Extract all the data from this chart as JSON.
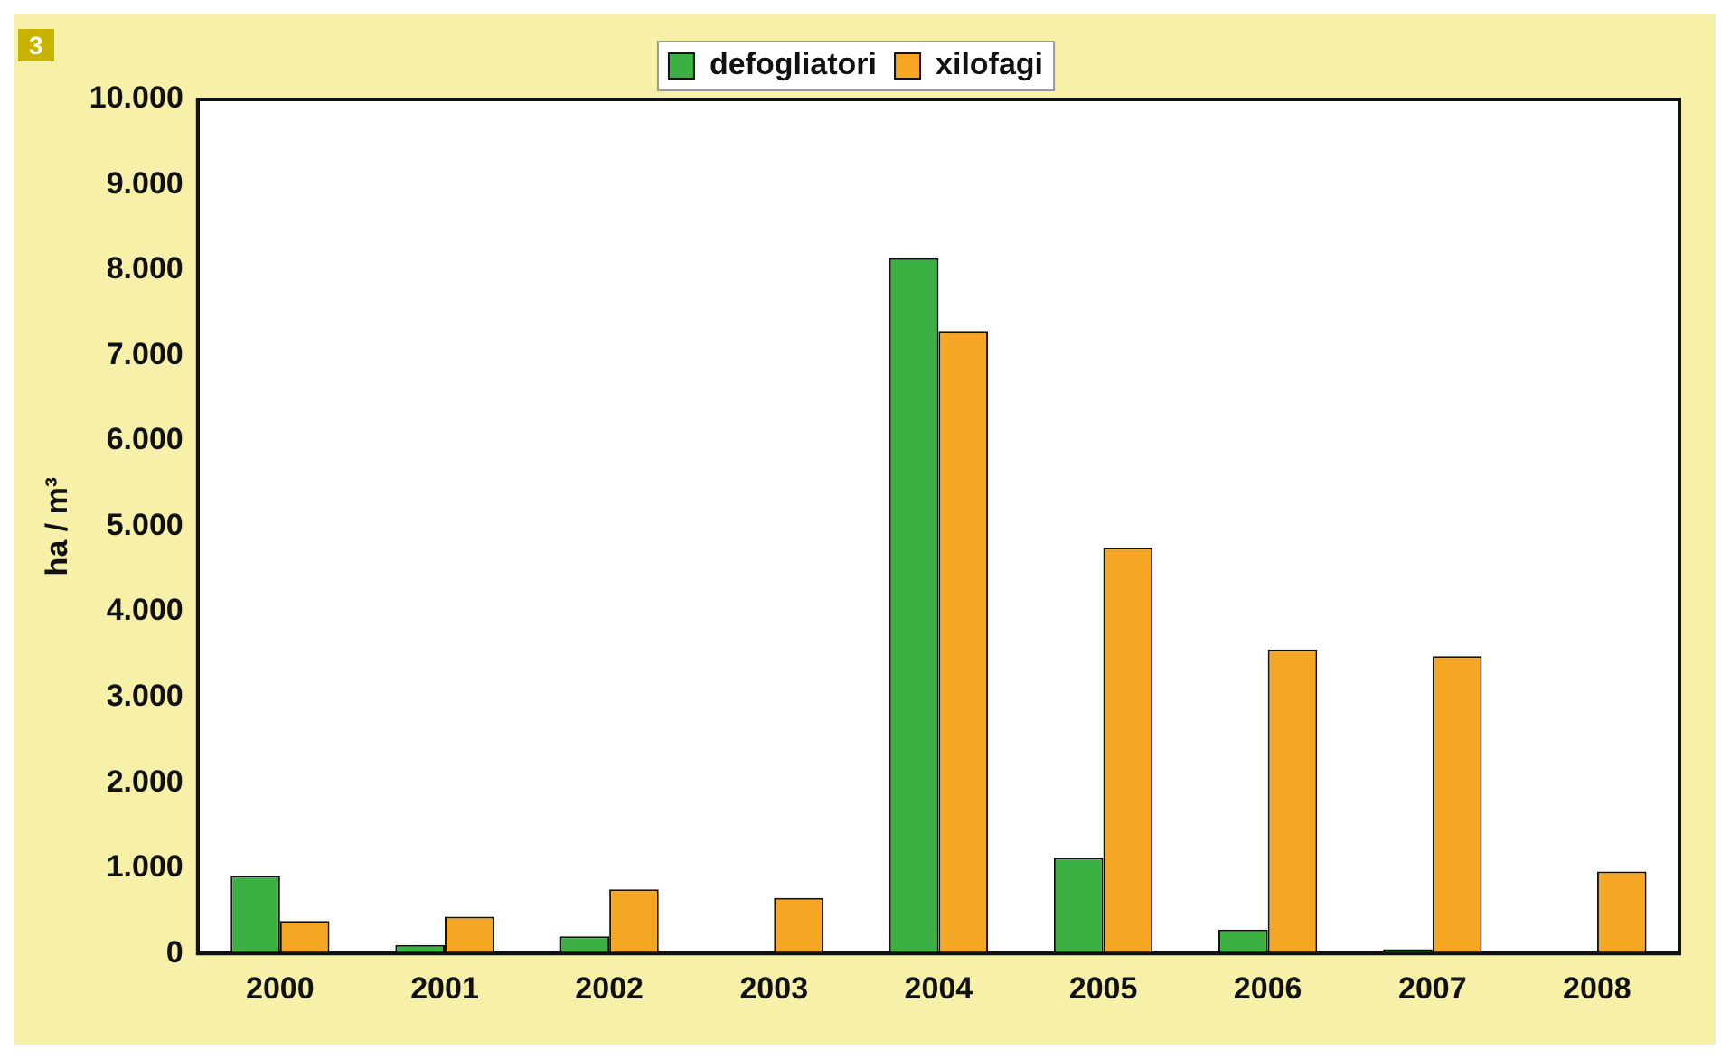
{
  "chart_data": {
    "type": "bar",
    "categories": [
      "2000",
      "2001",
      "2002",
      "2003",
      "2004",
      "2005",
      "2006",
      "2007",
      "2008"
    ],
    "series": [
      {
        "name": "defogliatori",
        "color": "#3cb043",
        "values": [
          910,
          100,
          200,
          0,
          8140,
          1120,
          280,
          50,
          null
        ]
      },
      {
        "name": "xilofagi",
        "color": "#f5a623",
        "values": [
          380,
          430,
          750,
          650,
          7290,
          4750,
          3560,
          3480,
          960
        ]
      }
    ],
    "ylabel": "ha / m³",
    "ylim": [
      0,
      10000
    ],
    "yticks": [
      {
        "value": 0,
        "label": "0"
      },
      {
        "value": 1000,
        "label": "1.000"
      },
      {
        "value": 2000,
        "label": "2.000"
      },
      {
        "value": 3000,
        "label": "3.000"
      },
      {
        "value": 4000,
        "label": "4.000"
      },
      {
        "value": 5000,
        "label": "5.000"
      },
      {
        "value": 6000,
        "label": "6.000"
      },
      {
        "value": 7000,
        "label": "7.000"
      },
      {
        "value": 8000,
        "label": "8.000"
      },
      {
        "value": 9000,
        "label": "9.000"
      },
      {
        "value": 10000,
        "label": "10.000"
      }
    ],
    "annotations": [
      "3"
    ],
    "legend": "top",
    "grid": false
  }
}
